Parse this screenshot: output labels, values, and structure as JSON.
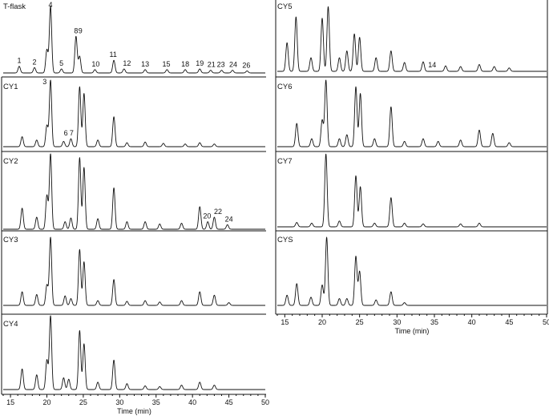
{
  "chart_data": [
    {
      "type": "line",
      "panel": "T-flask",
      "title": "T-flask",
      "xlabel": "",
      "x_range": [
        14,
        50
      ],
      "peaks": [
        {
          "t": 16.2,
          "h": 0.1
        },
        {
          "t": 18.3,
          "h": 0.08
        },
        {
          "t": 20.0,
          "h": 0.35
        },
        {
          "t": 20.5,
          "h": 1.0
        },
        {
          "t": 22.0,
          "h": 0.06
        },
        {
          "t": 24.0,
          "h": 0.55
        },
        {
          "t": 24.5,
          "h": 0.25
        },
        {
          "t": 26.6,
          "h": 0.05
        },
        {
          "t": 29.2,
          "h": 0.19
        },
        {
          "t": 30.6,
          "h": 0.06
        },
        {
          "t": 33.5,
          "h": 0.05
        },
        {
          "t": 36.5,
          "h": 0.05
        },
        {
          "t": 39.0,
          "h": 0.05
        },
        {
          "t": 41.0,
          "h": 0.06
        },
        {
          "t": 42.5,
          "h": 0.04
        },
        {
          "t": 44.0,
          "h": 0.04
        },
        {
          "t": 45.5,
          "h": 0.04
        },
        {
          "t": 47.5,
          "h": 0.03
        }
      ],
      "annotations": [
        {
          "label": "1",
          "t": 16.2
        },
        {
          "label": "2",
          "t": 18.3
        },
        {
          "label": "4",
          "t": 20.5
        },
        {
          "label": "5",
          "t": 22.0
        },
        {
          "label": "8",
          "t": 24.0
        },
        {
          "label": "9",
          "t": 24.6
        },
        {
          "label": "10",
          "t": 26.7
        },
        {
          "label": "11",
          "t": 29.1
        },
        {
          "label": "12",
          "t": 31.0
        },
        {
          "label": "13",
          "t": 33.5
        },
        {
          "label": "15",
          "t": 36.4
        },
        {
          "label": "18",
          "t": 39.0
        },
        {
          "label": "19",
          "t": 41.0
        },
        {
          "label": "21",
          "t": 42.6
        },
        {
          "label": "23",
          "t": 43.9
        },
        {
          "label": "24",
          "t": 45.6
        },
        {
          "label": "26",
          "t": 47.4
        }
      ]
    },
    {
      "type": "line",
      "panel": "CY1",
      "title": "CY1",
      "xlabel": "",
      "x_range": [
        14,
        50
      ],
      "peaks": [
        {
          "t": 16.6,
          "h": 0.15
        },
        {
          "t": 18.6,
          "h": 0.1
        },
        {
          "t": 20.0,
          "h": 0.32
        },
        {
          "t": 20.5,
          "h": 1.0
        },
        {
          "t": 22.3,
          "h": 0.08
        },
        {
          "t": 23.3,
          "h": 0.12
        },
        {
          "t": 24.5,
          "h": 0.9
        },
        {
          "t": 25.1,
          "h": 0.8
        },
        {
          "t": 27.0,
          "h": 0.1
        },
        {
          "t": 29.2,
          "h": 0.45
        },
        {
          "t": 31.0,
          "h": 0.06
        },
        {
          "t": 33.5,
          "h": 0.07
        },
        {
          "t": 36.0,
          "h": 0.05
        },
        {
          "t": 39.0,
          "h": 0.04
        },
        {
          "t": 41.0,
          "h": 0.06
        },
        {
          "t": 43.0,
          "h": 0.04
        }
      ],
      "annotations": [
        {
          "label": "3",
          "t": 19.7
        },
        {
          "label": "6",
          "t": 22.6
        },
        {
          "label": "7",
          "t": 23.4
        }
      ]
    },
    {
      "type": "line",
      "panel": "CY2",
      "title": "CY2",
      "xlabel": "",
      "x_range": [
        14,
        50
      ],
      "peaks": [
        {
          "t": 16.6,
          "h": 0.28
        },
        {
          "t": 18.6,
          "h": 0.16
        },
        {
          "t": 20.0,
          "h": 0.45
        },
        {
          "t": 20.5,
          "h": 1.0
        },
        {
          "t": 22.5,
          "h": 0.1
        },
        {
          "t": 23.3,
          "h": 0.15
        },
        {
          "t": 24.5,
          "h": 0.95
        },
        {
          "t": 25.1,
          "h": 0.82
        },
        {
          "t": 27.0,
          "h": 0.14
        },
        {
          "t": 29.2,
          "h": 0.55
        },
        {
          "t": 31.0,
          "h": 0.1
        },
        {
          "t": 33.5,
          "h": 0.1
        },
        {
          "t": 35.5,
          "h": 0.07
        },
        {
          "t": 38.5,
          "h": 0.08
        },
        {
          "t": 41.0,
          "h": 0.3
        },
        {
          "t": 42.1,
          "h": 0.1
        },
        {
          "t": 43.0,
          "h": 0.16
        },
        {
          "t": 44.8,
          "h": 0.06
        }
      ],
      "annotations": [
        {
          "label": "20",
          "t": 42.0
        },
        {
          "label": "22",
          "t": 43.5
        },
        {
          "label": "24",
          "t": 45.0
        }
      ]
    },
    {
      "type": "line",
      "panel": "CY3",
      "title": "CY3",
      "xlabel": "",
      "x_range": [
        14,
        50
      ],
      "peaks": [
        {
          "t": 16.6,
          "h": 0.2
        },
        {
          "t": 18.6,
          "h": 0.16
        },
        {
          "t": 20.0,
          "h": 0.3
        },
        {
          "t": 20.5,
          "h": 1.0
        },
        {
          "t": 22.5,
          "h": 0.14
        },
        {
          "t": 23.3,
          "h": 0.1
        },
        {
          "t": 24.5,
          "h": 0.82
        },
        {
          "t": 25.1,
          "h": 0.64
        },
        {
          "t": 27.0,
          "h": 0.07
        },
        {
          "t": 29.2,
          "h": 0.38
        },
        {
          "t": 31.0,
          "h": 0.06
        },
        {
          "t": 33.5,
          "h": 0.07
        },
        {
          "t": 35.5,
          "h": 0.05
        },
        {
          "t": 38.5,
          "h": 0.07
        },
        {
          "t": 41.0,
          "h": 0.2
        },
        {
          "t": 43.0,
          "h": 0.15
        },
        {
          "t": 45.0,
          "h": 0.04
        }
      ],
      "annotations": []
    },
    {
      "type": "line",
      "panel": "CY4",
      "title": "CY4",
      "xlabel": "Time (min)",
      "x_range": [
        14,
        50
      ],
      "x_ticks": [
        15,
        20,
        25,
        30,
        35,
        40,
        45,
        50
      ],
      "peaks": [
        {
          "t": 16.6,
          "h": 0.28
        },
        {
          "t": 18.6,
          "h": 0.2
        },
        {
          "t": 20.0,
          "h": 0.4
        },
        {
          "t": 20.5,
          "h": 1.0
        },
        {
          "t": 22.3,
          "h": 0.16
        },
        {
          "t": 23.0,
          "h": 0.14
        },
        {
          "t": 24.5,
          "h": 0.8
        },
        {
          "t": 25.1,
          "h": 0.62
        },
        {
          "t": 27.0,
          "h": 0.1
        },
        {
          "t": 29.2,
          "h": 0.4
        },
        {
          "t": 31.0,
          "h": 0.08
        },
        {
          "t": 33.5,
          "h": 0.05
        },
        {
          "t": 35.5,
          "h": 0.04
        },
        {
          "t": 38.5,
          "h": 0.06
        },
        {
          "t": 41.0,
          "h": 0.1
        },
        {
          "t": 43.0,
          "h": 0.06
        }
      ],
      "annotations": []
    },
    {
      "type": "line",
      "panel": "CY5",
      "title": "CY5",
      "xlabel": "",
      "x_range": [
        14,
        50
      ],
      "peaks": [
        {
          "t": 15.3,
          "h": 0.42
        },
        {
          "t": 16.5,
          "h": 0.8
        },
        {
          "t": 18.5,
          "h": 0.2
        },
        {
          "t": 20.0,
          "h": 0.78
        },
        {
          "t": 20.8,
          "h": 0.95
        },
        {
          "t": 22.3,
          "h": 0.2
        },
        {
          "t": 23.3,
          "h": 0.3
        },
        {
          "t": 24.3,
          "h": 0.55
        },
        {
          "t": 25.0,
          "h": 0.5
        },
        {
          "t": 27.2,
          "h": 0.2
        },
        {
          "t": 29.2,
          "h": 0.3
        },
        {
          "t": 31.0,
          "h": 0.13
        },
        {
          "t": 33.5,
          "h": 0.14
        },
        {
          "t": 36.5,
          "h": 0.08
        },
        {
          "t": 38.5,
          "h": 0.07
        },
        {
          "t": 41.0,
          "h": 0.1
        },
        {
          "t": 43.0,
          "h": 0.07
        },
        {
          "t": 45.0,
          "h": 0.05
        }
      ],
      "annotations": [
        {
          "label": "14",
          "t": 34.7
        }
      ]
    },
    {
      "type": "line",
      "panel": "CY6",
      "title": "CY6",
      "xlabel": "",
      "x_range": [
        14,
        50
      ],
      "peaks": [
        {
          "t": 16.6,
          "h": 0.35
        },
        {
          "t": 18.6,
          "h": 0.12
        },
        {
          "t": 20.0,
          "h": 0.4
        },
        {
          "t": 20.5,
          "h": 1.0
        },
        {
          "t": 22.3,
          "h": 0.12
        },
        {
          "t": 23.3,
          "h": 0.18
        },
        {
          "t": 24.5,
          "h": 0.9
        },
        {
          "t": 25.1,
          "h": 0.8
        },
        {
          "t": 27.0,
          "h": 0.12
        },
        {
          "t": 29.2,
          "h": 0.6
        },
        {
          "t": 31.0,
          "h": 0.08
        },
        {
          "t": 33.5,
          "h": 0.12
        },
        {
          "t": 35.5,
          "h": 0.08
        },
        {
          "t": 38.5,
          "h": 0.1
        },
        {
          "t": 41.0,
          "h": 0.25
        },
        {
          "t": 42.8,
          "h": 0.2
        },
        {
          "t": 45.0,
          "h": 0.06
        }
      ],
      "annotations": []
    },
    {
      "type": "line",
      "panel": "CY7",
      "title": "CY7",
      "xlabel": "",
      "x_range": [
        14,
        50
      ],
      "peaks": [
        {
          "t": 16.6,
          "h": 0.06
        },
        {
          "t": 18.6,
          "h": 0.05
        },
        {
          "t": 20.5,
          "h": 1.0
        },
        {
          "t": 22.3,
          "h": 0.08
        },
        {
          "t": 24.5,
          "h": 0.7
        },
        {
          "t": 25.1,
          "h": 0.55
        },
        {
          "t": 27.0,
          "h": 0.05
        },
        {
          "t": 29.2,
          "h": 0.4
        },
        {
          "t": 31.0,
          "h": 0.05
        },
        {
          "t": 33.5,
          "h": 0.04
        },
        {
          "t": 38.5,
          "h": 0.04
        },
        {
          "t": 41.0,
          "h": 0.05
        }
      ],
      "annotations": []
    },
    {
      "type": "line",
      "panel": "CYS",
      "title": "CYS",
      "xlabel": "Time (min)",
      "x_range": [
        14,
        50
      ],
      "x_ticks": [
        15,
        20,
        25,
        30,
        35,
        40,
        45,
        50
      ],
      "peaks": [
        {
          "t": 15.3,
          "h": 0.15
        },
        {
          "t": 16.6,
          "h": 0.32
        },
        {
          "t": 18.5,
          "h": 0.12
        },
        {
          "t": 20.0,
          "h": 0.3
        },
        {
          "t": 20.6,
          "h": 1.0
        },
        {
          "t": 22.3,
          "h": 0.1
        },
        {
          "t": 23.3,
          "h": 0.1
        },
        {
          "t": 24.5,
          "h": 0.72
        },
        {
          "t": 25.0,
          "h": 0.5
        },
        {
          "t": 27.2,
          "h": 0.08
        },
        {
          "t": 29.2,
          "h": 0.2
        },
        {
          "t": 31.0,
          "h": 0.04
        }
      ],
      "annotations": []
    }
  ]
}
